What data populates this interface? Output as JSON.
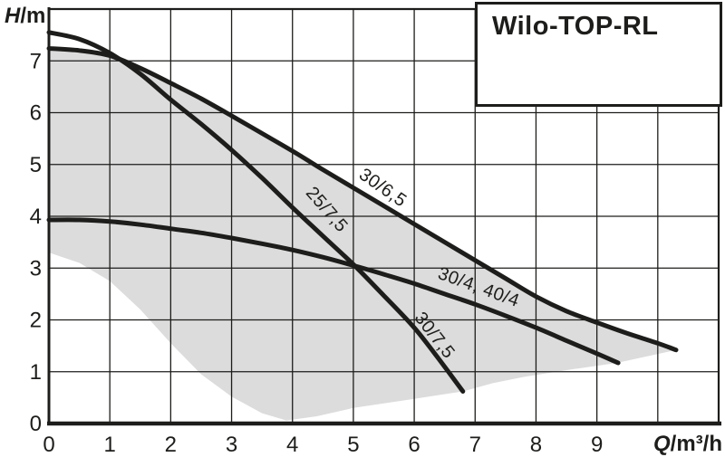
{
  "title_box": {
    "title": "Wilo-TOP-RL"
  },
  "axes": {
    "y_title": {
      "italic": "H",
      "rest": "/m"
    },
    "x_title": {
      "italic": "Q",
      "rest": "/m³/h"
    }
  },
  "colors": {
    "curve": "#1d1d1b",
    "grid": "#1d1d1b",
    "region_fill": "#dcdcdc",
    "text": "#1d1d1b",
    "background": "#ffffff"
  },
  "chart_data": {
    "type": "line",
    "title": "Wilo-TOP-RL",
    "xlabel": "Q/m³/h",
    "ylabel": "H/m",
    "xlim": [
      0,
      11
    ],
    "ylim": [
      0,
      8
    ],
    "x_tick_values": [
      0,
      1,
      2,
      3,
      4,
      5,
      6,
      7,
      8,
      9
    ],
    "y_tick_values": [
      0,
      1,
      2,
      3,
      4,
      5,
      6,
      7
    ],
    "grid": true,
    "legend_position": "none",
    "series": [
      {
        "name": "25/7,5 / 30/7,5",
        "points": [
          [
            0,
            7.55
          ],
          [
            0.5,
            7.42
          ],
          [
            1,
            7.15
          ],
          [
            1.5,
            6.75
          ],
          [
            2,
            6.25
          ],
          [
            2.5,
            5.78
          ],
          [
            3,
            5.28
          ],
          [
            3.5,
            4.74
          ],
          [
            4,
            4.17
          ],
          [
            4.5,
            3.62
          ],
          [
            5,
            3.07
          ],
          [
            5.5,
            2.47
          ],
          [
            6,
            1.85
          ],
          [
            6.4,
            1.25
          ],
          [
            6.8,
            0.62
          ]
        ]
      },
      {
        "name": "30/6,5",
        "points": [
          [
            0,
            7.24
          ],
          [
            0.5,
            7.2
          ],
          [
            1,
            7.1
          ],
          [
            1.5,
            6.86
          ],
          [
            2,
            6.57
          ],
          [
            2.5,
            6.27
          ],
          [
            3,
            5.94
          ],
          [
            3.5,
            5.6
          ],
          [
            4,
            5.26
          ],
          [
            4.5,
            4.9
          ],
          [
            5,
            4.55
          ],
          [
            5.5,
            4.2
          ],
          [
            6,
            3.85
          ],
          [
            6.5,
            3.5
          ],
          [
            7,
            3.15
          ],
          [
            7.5,
            2.8
          ],
          [
            8,
            2.45
          ],
          [
            8.5,
            2.17
          ],
          [
            9,
            1.95
          ],
          [
            9.5,
            1.74
          ],
          [
            10,
            1.55
          ],
          [
            10.3,
            1.42
          ]
        ]
      },
      {
        "name": "30/4, 40/4",
        "points": [
          [
            0,
            3.93
          ],
          [
            0.5,
            3.93
          ],
          [
            1,
            3.9
          ],
          [
            1.5,
            3.84
          ],
          [
            2,
            3.76
          ],
          [
            2.5,
            3.68
          ],
          [
            3,
            3.58
          ],
          [
            3.5,
            3.47
          ],
          [
            4,
            3.35
          ],
          [
            4.5,
            3.21
          ],
          [
            5,
            3.05
          ],
          [
            5.5,
            2.88
          ],
          [
            6,
            2.7
          ],
          [
            6.5,
            2.5
          ],
          [
            7,
            2.3
          ],
          [
            7.5,
            2.08
          ],
          [
            8,
            1.85
          ],
          [
            8.5,
            1.6
          ],
          [
            9,
            1.35
          ],
          [
            9.35,
            1.17
          ]
        ]
      }
    ],
    "operating_region": [
      [
        0,
        3.3
      ],
      [
        0,
        7.2
      ],
      [
        0.5,
        7.17
      ],
      [
        1,
        7.08
      ],
      [
        1.5,
        6.86
      ],
      [
        2,
        6.57
      ],
      [
        2.5,
        6.27
      ],
      [
        3,
        5.94
      ],
      [
        3.5,
        5.6
      ],
      [
        4,
        5.26
      ],
      [
        4.5,
        4.9
      ],
      [
        5,
        4.55
      ],
      [
        5.5,
        4.2
      ],
      [
        6,
        3.85
      ],
      [
        6.5,
        3.5
      ],
      [
        7,
        3.15
      ],
      [
        7.5,
        2.8
      ],
      [
        8,
        2.45
      ],
      [
        8.5,
        2.17
      ],
      [
        9,
        1.95
      ],
      [
        9.5,
        1.74
      ],
      [
        10,
        1.55
      ],
      [
        10.3,
        1.42
      ],
      [
        9.33,
        1.17
      ],
      [
        8.5,
        1.03
      ],
      [
        7.8,
        0.9
      ],
      [
        7.3,
        0.78
      ],
      [
        6.8,
        0.62
      ],
      [
        5.9,
        0.46
      ],
      [
        5,
        0.3
      ],
      [
        4.4,
        0.14
      ],
      [
        3.9,
        0.06
      ],
      [
        3.5,
        0.2
      ],
      [
        3,
        0.52
      ],
      [
        2.5,
        0.95
      ],
      [
        2,
        1.55
      ],
      [
        1.5,
        2.2
      ],
      [
        1,
        2.75
      ],
      [
        0.5,
        3.1
      ]
    ],
    "curve_labels": [
      {
        "text": "30/6,5",
        "x": 5.48,
        "y": 4.55,
        "rotation_deg": 35
      },
      {
        "text": "25/7,5",
        "x": 4.56,
        "y": 4.12,
        "rotation_deg": 49
      },
      {
        "text": "30/4, 40/4",
        "x": 7.05,
        "y": 2.62,
        "rotation_deg": 20
      },
      {
        "text": "30/7,5",
        "x": 6.33,
        "y": 1.7,
        "rotation_deg": 52
      }
    ]
  }
}
